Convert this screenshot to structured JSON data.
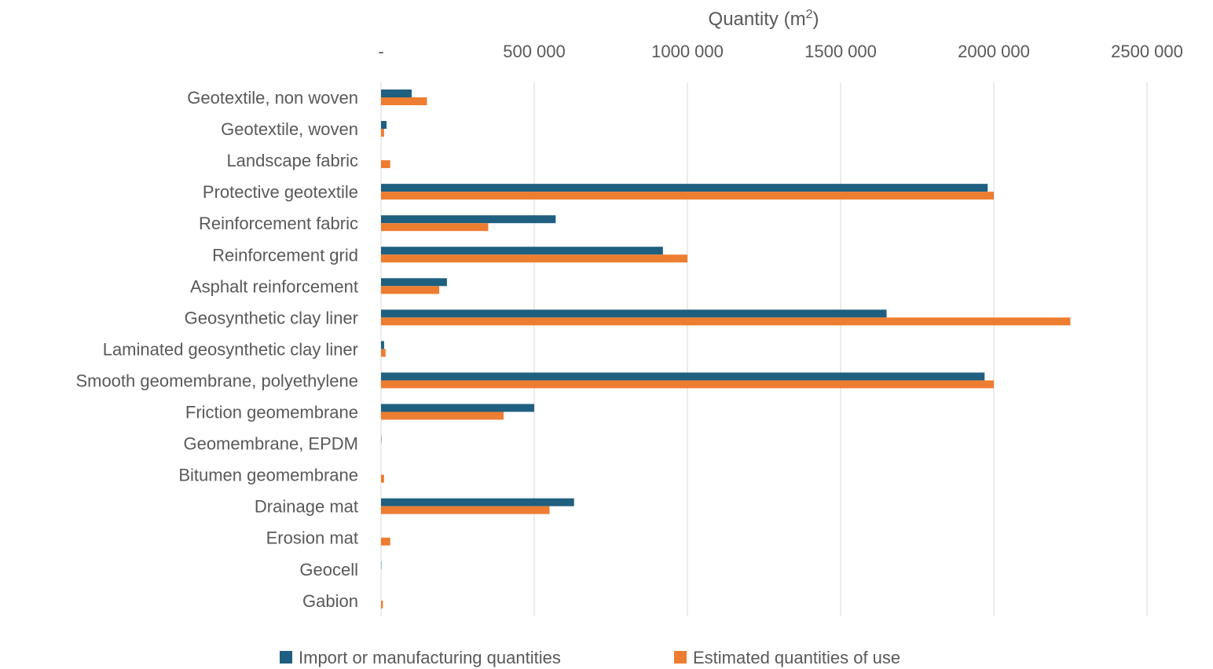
{
  "chart_data": {
    "type": "bar",
    "orientation": "horizontal",
    "title": "",
    "xlabel_main": "Quantity (m",
    "xlabel_sup": "2",
    "xlabel_end": ")",
    "x_axis_position": "top",
    "xlim": [
      0,
      2500000
    ],
    "x_ticks": [
      0,
      500000,
      1000000,
      1500000,
      2000000,
      2500000
    ],
    "x_tick_labels": [
      "-",
      "500 000",
      "1000 000",
      "1500 000",
      "2000 000",
      "2500 000"
    ],
    "grid": true,
    "legend_position": "bottom",
    "categories": [
      "Geotextile, non woven",
      "Geotextile, woven",
      "Landscape fabric",
      "Protective geotextile",
      "Reinforcement fabric",
      "Reinforcement grid",
      "Asphalt reinforcement",
      "Geosynthetic clay liner",
      "Laminated geosynthetic clay liner",
      "Smooth geomembrane, polyethylene",
      "Friction geomembrane",
      "Geomembrane, EPDM",
      "Bitumen geomembrane",
      "Drainage mat",
      "Erosion mat",
      "Geocell",
      "Gabion"
    ],
    "series": [
      {
        "name": "Import or manufacturing quantities",
        "color": "#1f5f7f",
        "values": [
          100000,
          18000,
          0,
          1980000,
          570000,
          920000,
          215000,
          1650000,
          10000,
          1970000,
          500000,
          1000,
          0,
          630000,
          0,
          1000,
          0
        ]
      },
      {
        "name": "Estimated quantities of use",
        "color": "#ed7d31",
        "values": [
          150000,
          10000,
          30000,
          2000000,
          350000,
          1000000,
          190000,
          2250000,
          15000,
          2000000,
          400000,
          0,
          10000,
          550000,
          30000,
          0,
          6000
        ]
      }
    ]
  }
}
